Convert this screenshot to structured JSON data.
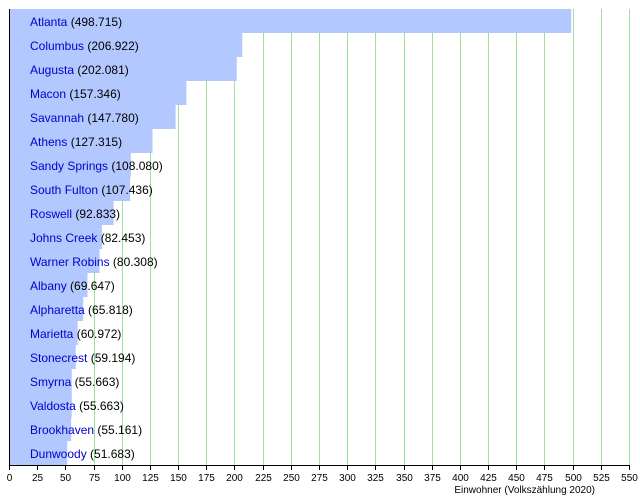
{
  "chart_data": {
    "type": "bar",
    "orientation": "horizontal",
    "xlabel": "Einwohner (Volkszählung 2020)",
    "xlim": [
      0,
      550
    ],
    "xticks": [
      0,
      25,
      50,
      75,
      100,
      125,
      150,
      175,
      200,
      225,
      250,
      275,
      300,
      325,
      350,
      375,
      400,
      425,
      450,
      475,
      500,
      525,
      550
    ],
    "grid": true,
    "colors": {
      "bar": "#b3c8ff",
      "grid": "#9ee19e",
      "label": "#0000cc"
    },
    "bars": [
      {
        "name": "Atlanta",
        "value_label": "(498.715)",
        "value": 498.715
      },
      {
        "name": "Columbus",
        "value_label": "(206.922)",
        "value": 206.922
      },
      {
        "name": "Augusta",
        "value_label": "(202.081)",
        "value": 202.081
      },
      {
        "name": "Macon",
        "value_label": "(157.346)",
        "value": 157.346
      },
      {
        "name": "Savannah",
        "value_label": "(147.780)",
        "value": 147.78
      },
      {
        "name": "Athens",
        "value_label": "(127.315)",
        "value": 127.315
      },
      {
        "name": "Sandy Springs",
        "value_label": "(108.080)",
        "value": 108.08
      },
      {
        "name": "South Fulton",
        "value_label": "(107.436)",
        "value": 107.436
      },
      {
        "name": "Roswell",
        "value_label": "(92.833)",
        "value": 92.833
      },
      {
        "name": "Johns Creek",
        "value_label": "(82.453)",
        "value": 82.453
      },
      {
        "name": "Warner Robins",
        "value_label": "(80.308)",
        "value": 80.308
      },
      {
        "name": "Albany",
        "value_label": "(69.647)",
        "value": 69.647
      },
      {
        "name": "Alpharetta",
        "value_label": "(65.818)",
        "value": 65.818
      },
      {
        "name": "Marietta",
        "value_label": "(60.972)",
        "value": 60.972
      },
      {
        "name": "Stonecrest",
        "value_label": "(59.194)",
        "value": 59.194
      },
      {
        "name": "Smyrna",
        "value_label": "(55.663)",
        "value": 55.663
      },
      {
        "name": "Valdosta",
        "value_label": "(55.663)",
        "value": 55.663
      },
      {
        "name": "Brookhaven",
        "value_label": "(55.161)",
        "value": 55.161
      },
      {
        "name": "Dunwoody",
        "value_label": "(51.683)",
        "value": 51.683
      }
    ]
  }
}
